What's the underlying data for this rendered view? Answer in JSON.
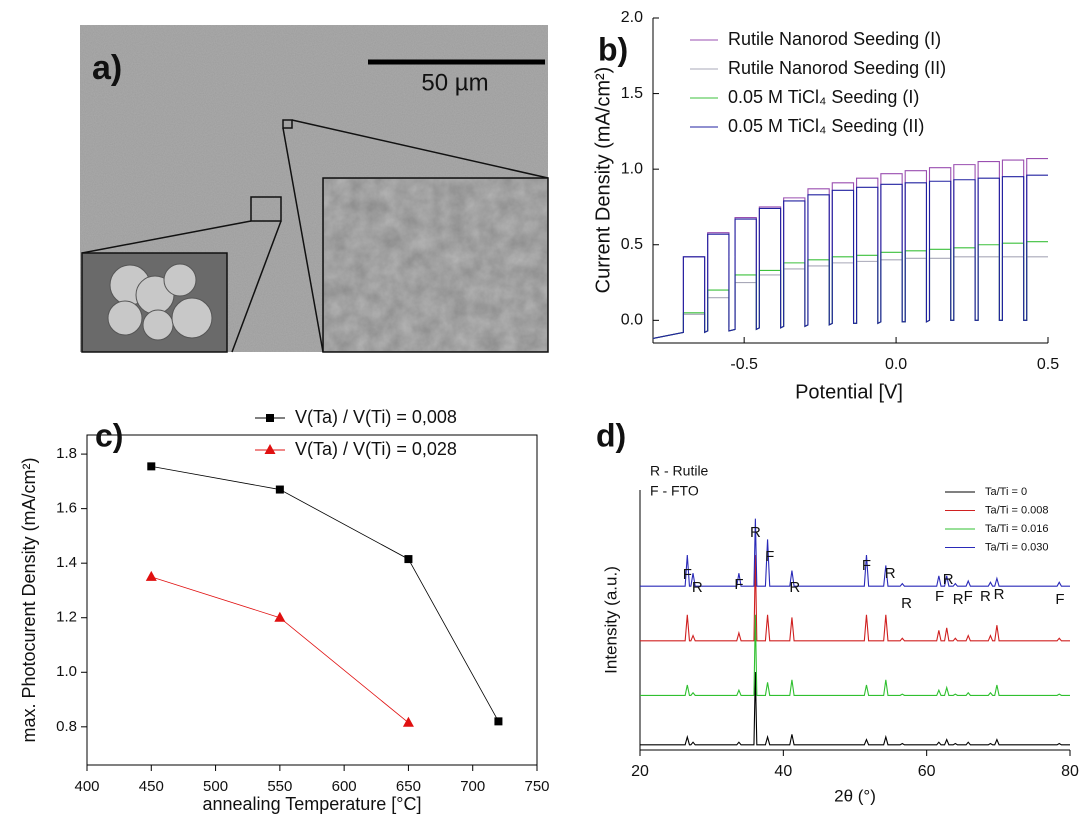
{
  "image_panel": {
    "label": "a)",
    "scale_bar": "50 µm"
  },
  "chart_data": [
    {
      "type": "line",
      "panel_label": "b)",
      "x_label": "Potential [V]",
      "y_label": "Current Density (mA/cm²)",
      "xlim": [
        -0.8,
        0.5
      ],
      "ylim": [
        -0.15,
        2.0
      ],
      "xticks": [
        -0.5,
        {
          "value": 0,
          "label": "0.0"
        },
        0.5
      ],
      "yticks": [
        {
          "value": 0,
          "label": "0.0"
        },
        0.5,
        {
          "value": 1,
          "label": "1.0"
        },
        1.5,
        {
          "value": 2,
          "label": "2.0"
        }
      ],
      "x": [
        -0.8,
        -0.7,
        -0.7,
        -0.63,
        -0.63,
        -0.62,
        -0.62,
        -0.55,
        -0.55,
        -0.53,
        -0.53,
        -0.46,
        -0.46,
        -0.45,
        -0.45,
        -0.38,
        -0.38,
        -0.37,
        -0.37,
        -0.3,
        -0.3,
        -0.29,
        -0.29,
        -0.22,
        -0.22,
        -0.21,
        -0.21,
        -0.14,
        -0.14,
        -0.13,
        -0.13,
        -0.06,
        -0.06,
        -0.05,
        -0.05,
        0.02,
        0.02,
        0.03,
        0.03,
        0.1,
        0.1,
        0.11,
        0.11,
        0.18,
        0.18,
        0.19,
        0.19,
        0.26,
        0.26,
        0.27,
        0.27,
        0.34,
        0.34,
        0.35,
        0.35,
        0.42,
        0.42,
        0.43,
        0.43,
        0.5
      ],
      "series": [
        {
          "name": "Rutile Nanorod Seeding (I)",
          "color": "#9a4fb0",
          "values": [
            -0.12,
            -0.08,
            0.42,
            0.42,
            -0.08,
            -0.07,
            0.58,
            0.58,
            -0.07,
            -0.06,
            0.68,
            0.68,
            -0.06,
            -0.05,
            0.75,
            0.75,
            -0.05,
            -0.04,
            0.81,
            0.81,
            -0.04,
            -0.03,
            0.87,
            0.87,
            -0.03,
            -0.02,
            0.91,
            0.91,
            -0.02,
            -0.02,
            0.94,
            0.94,
            -0.02,
            -0.01,
            0.97,
            0.97,
            -0.01,
            -0.01,
            0.99,
            0.99,
            -0.01,
            0,
            1.01,
            1.01,
            0,
            0,
            1.03,
            1.03,
            0,
            0,
            1.05,
            1.05,
            0,
            0,
            1.06,
            1.06,
            0,
            0,
            1.07,
            1.07
          ]
        },
        {
          "name": "Rutile Nanorod Seeding (II)",
          "color": "#a8a8b8",
          "values": [
            -0.12,
            -0.08,
            0.04,
            0.04,
            -0.08,
            -0.07,
            0.15,
            0.15,
            -0.07,
            -0.06,
            0.25,
            0.25,
            -0.06,
            -0.05,
            0.3,
            0.3,
            -0.05,
            -0.04,
            0.34,
            0.34,
            -0.04,
            -0.03,
            0.36,
            0.36,
            -0.03,
            -0.02,
            0.38,
            0.38,
            -0.02,
            -0.02,
            0.39,
            0.39,
            -0.02,
            -0.01,
            0.4,
            0.4,
            -0.01,
            -0.01,
            0.41,
            0.41,
            -0.01,
            0,
            0.41,
            0.41,
            0,
            0,
            0.42,
            0.42,
            0,
            0,
            0.42,
            0.42,
            0,
            0,
            0.42,
            0.42,
            0,
            0,
            0.42,
            0.42
          ]
        },
        {
          "name": "0.05 M TiCl₄ Seeding (I)",
          "color": "#3cc03c",
          "values": [
            -0.12,
            -0.08,
            0.05,
            0.05,
            -0.08,
            -0.07,
            0.2,
            0.2,
            -0.07,
            -0.06,
            0.3,
            0.3,
            -0.06,
            -0.05,
            0.33,
            0.33,
            -0.05,
            -0.04,
            0.38,
            0.38,
            -0.04,
            -0.03,
            0.4,
            0.4,
            -0.03,
            -0.02,
            0.42,
            0.42,
            -0.02,
            -0.02,
            0.43,
            0.43,
            -0.02,
            -0.01,
            0.45,
            0.45,
            -0.01,
            -0.01,
            0.46,
            0.46,
            -0.01,
            0,
            0.47,
            0.47,
            0,
            0,
            0.48,
            0.48,
            0,
            0,
            0.5,
            0.5,
            0,
            0,
            0.51,
            0.51,
            0,
            0,
            0.52,
            0.52
          ]
        },
        {
          "name": "0.05 M TiCl₄ Seeding (II)",
          "color": "#2020a0",
          "values": [
            -0.12,
            -0.08,
            0.42,
            0.42,
            -0.08,
            -0.07,
            0.57,
            0.57,
            -0.07,
            -0.06,
            0.67,
            0.67,
            -0.06,
            -0.05,
            0.74,
            0.74,
            -0.05,
            -0.04,
            0.79,
            0.79,
            -0.04,
            -0.03,
            0.83,
            0.83,
            -0.03,
            -0.02,
            0.86,
            0.86,
            -0.02,
            -0.02,
            0.88,
            0.88,
            -0.02,
            -0.01,
            0.9,
            0.9,
            -0.01,
            -0.01,
            0.91,
            0.91,
            -0.01,
            0,
            0.92,
            0.92,
            0,
            0,
            0.93,
            0.93,
            0,
            0,
            0.94,
            0.94,
            0,
            0,
            0.95,
            0.95,
            0,
            0,
            0.96,
            0.96
          ]
        }
      ]
    },
    {
      "type": "line",
      "panel_label": "c)",
      "x_label": "annealing Temperature [°C]",
      "y_label": "max. Photocurent Density (mA/cm²)",
      "xlim": [
        400,
        750
      ],
      "ylim": [
        0.66,
        1.87
      ],
      "xticks": [
        400,
        450,
        500,
        550,
        600,
        650,
        700,
        750
      ],
      "yticks": [
        0.8,
        {
          "value": 1,
          "label": "1.0"
        },
        1.2,
        1.4,
        1.6,
        1.8
      ],
      "series": [
        {
          "name": "V(Ta) / V(Ti) = 0,008",
          "color": "#000000",
          "marker": "square",
          "x": [
            450,
            550,
            650,
            720
          ],
          "values": [
            1.755,
            1.67,
            1.415,
            0.82
          ]
        },
        {
          "name": "V(Ta) / V(Ti) = 0,028",
          "color": "#e01010",
          "marker": "triangle",
          "x": [
            450,
            550,
            650
          ],
          "values": [
            1.35,
            1.2,
            0.815
          ]
        }
      ]
    },
    {
      "type": "line",
      "panel_label": "d)",
      "x_label": "2θ (°)",
      "y_label": "Intensity (a.u.)",
      "notes": [
        "R - Rutile",
        "F - FTO"
      ],
      "peak_labels": [
        "F",
        "R",
        "F",
        "R",
        "F",
        "R",
        "F",
        "R",
        "R",
        "F",
        "R",
        "R",
        "F",
        "R",
        "R",
        "F"
      ],
      "xlim": [
        20,
        80
      ],
      "ylim": [
        0,
        10
      ],
      "xticks": [
        20,
        40,
        60,
        80
      ],
      "x": [
        20,
        26.3,
        26.6,
        26.9,
        27.1,
        27.4,
        27.7,
        33.5,
        33.8,
        34.1,
        35.9,
        36.1,
        36.3,
        37.5,
        37.8,
        38.1,
        40.9,
        41.2,
        41.5,
        51.3,
        51.6,
        51.9,
        54.0,
        54.3,
        54.6,
        56.3,
        56.6,
        56.9,
        61.4,
        61.7,
        62.0,
        62.5,
        62.8,
        63.1,
        63.7,
        64.0,
        64.3,
        65.5,
        65.8,
        66.1,
        68.6,
        68.9,
        69.2,
        69.5,
        69.8,
        70.1,
        78.2,
        78.5,
        78.8,
        80
      ],
      "series": [
        {
          "name": "Ta/Ti = 0",
          "color": "#000000",
          "values": [
            0.2,
            0.2,
            0.5,
            0.2,
            0.2,
            0.3,
            0.2,
            0.2,
            0.3,
            0.2,
            0.2,
            3.0,
            0.2,
            0.2,
            0.5,
            0.2,
            0.2,
            0.6,
            0.2,
            0.2,
            0.4,
            0.2,
            0.2,
            0.5,
            0.2,
            0.2,
            0.25,
            0.2,
            0.2,
            0.3,
            0.2,
            0.2,
            0.4,
            0.2,
            0.2,
            0.25,
            0.2,
            0.2,
            0.3,
            0.2,
            0.2,
            0.25,
            0.2,
            0.2,
            0.4,
            0.2,
            0.2,
            0.25,
            0.2,
            0.2
          ]
        },
        {
          "name": "Ta/Ti = 0.008",
          "color": "#d02020",
          "values": [
            4.2,
            4.2,
            5.2,
            4.2,
            4.2,
            4.4,
            4.2,
            4.2,
            4.5,
            4.2,
            4.2,
            7.5,
            4.2,
            4.2,
            5.2,
            4.2,
            4.2,
            5.1,
            4.2,
            4.2,
            5.2,
            4.2,
            4.2,
            5.2,
            4.2,
            4.2,
            4.3,
            4.2,
            4.2,
            4.6,
            4.2,
            4.2,
            4.7,
            4.2,
            4.2,
            4.3,
            4.2,
            4.2,
            4.4,
            4.2,
            4.2,
            4.4,
            4.2,
            4.2,
            4.8,
            4.2,
            4.2,
            4.3,
            4.2,
            4.2
          ]
        },
        {
          "name": "Ta/Ti = 0.016",
          "color": "#30c030",
          "values": [
            2.1,
            2.1,
            2.5,
            2.1,
            2.1,
            2.2,
            2.1,
            2.1,
            2.3,
            2.1,
            2.1,
            5.2,
            2.1,
            2.1,
            2.6,
            2.1,
            2.1,
            2.7,
            2.1,
            2.1,
            2.5,
            2.1,
            2.1,
            2.7,
            2.1,
            2.1,
            2.15,
            2.1,
            2.1,
            2.3,
            2.1,
            2.1,
            2.4,
            2.1,
            2.1,
            2.15,
            2.1,
            2.1,
            2.2,
            2.1,
            2.1,
            2.2,
            2.1,
            2.1,
            2.5,
            2.1,
            2.1,
            2.15,
            2.1,
            2.1
          ]
        },
        {
          "name": "Ta/Ti = 0.030",
          "color": "#2a2ab8",
          "values": [
            6.3,
            6.3,
            7.5,
            6.3,
            6.3,
            6.8,
            6.3,
            6.3,
            6.8,
            6.3,
            6.3,
            8.9,
            6.3,
            6.3,
            8.1,
            6.3,
            6.3,
            6.9,
            6.3,
            6.3,
            7.5,
            6.3,
            6.3,
            7.1,
            6.3,
            6.3,
            6.4,
            6.3,
            6.3,
            6.7,
            6.3,
            6.3,
            6.7,
            6.3,
            6.3,
            6.4,
            6.3,
            6.3,
            6.5,
            6.3,
            6.3,
            6.45,
            6.3,
            6.3,
            6.6,
            6.3,
            6.3,
            6.45,
            6.3,
            6.3
          ]
        }
      ]
    }
  ]
}
